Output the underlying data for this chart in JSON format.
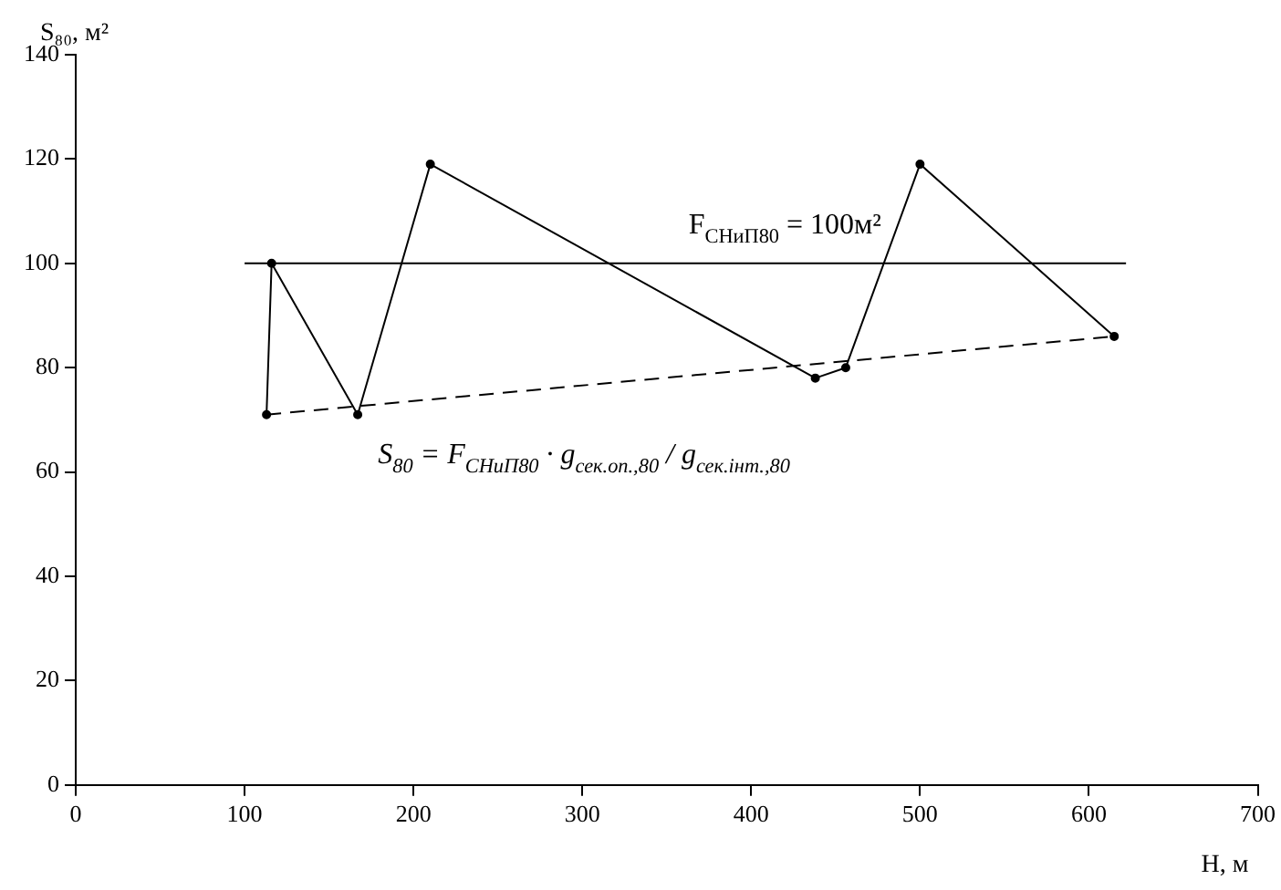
{
  "chart_data": {
    "type": "line",
    "xlabel": "H, м",
    "ylabel": "S₈₀, м²",
    "xlim": [
      0,
      700
    ],
    "xticks": [
      0,
      100,
      200,
      300,
      400,
      500,
      600,
      700
    ],
    "ylim": [
      0,
      140
    ],
    "yticks": [
      0,
      20,
      40,
      60,
      80,
      100,
      120,
      140
    ],
    "grid": false,
    "legend": false,
    "series": [
      {
        "color": "#000000",
        "marker": "circle",
        "line_style": "solid",
        "x": [
          113,
          116,
          167,
          210,
          438,
          456,
          500,
          615
        ],
        "values": [
          71,
          100,
          71,
          119,
          78,
          80,
          119,
          86
        ]
      },
      {
        "color": "#000000",
        "marker": "none",
        "line_style": "dashed",
        "x": [
          113,
          615
        ],
        "values": [
          71,
          86
        ]
      },
      {
        "color": "#000000",
        "marker": "none",
        "line_style": "solid",
        "x": [
          100,
          622
        ],
        "values": [
          100,
          100
        ]
      }
    ],
    "annotations": [
      "F$_{СНиП80}$ = 100м²",
      "S$_{80}$ = F$_{СНиП80}$ · g$_{сек.оп.,80}$ / g$_{сек.інт.,80}$"
    ]
  }
}
